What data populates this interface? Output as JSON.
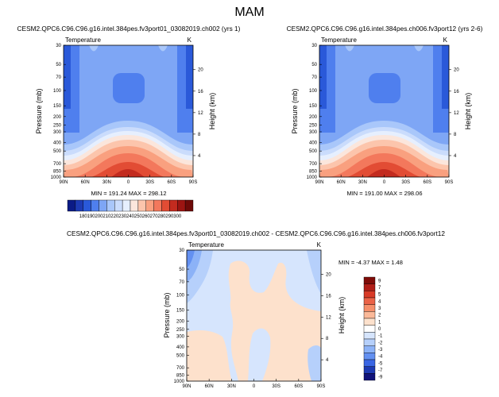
{
  "figure": {
    "title": "MAM"
  },
  "palettes": {
    "abs": [
      "#0b1b86",
      "#1d3ab3",
      "#2a59d9",
      "#4f7fee",
      "#7ea6f5",
      "#a9c7fa",
      "#cadcfc",
      "#e6effe",
      "#fbe6dc",
      "#fcc5ac",
      "#f9a07f",
      "#f3785c",
      "#e24c34",
      "#c32b1f",
      "#9c1512",
      "#6e0a08"
    ],
    "diff": [
      "#10127a",
      "#1d3ab3",
      "#3a66e4",
      "#6390f1",
      "#8cb2f7",
      "#b6d0fb",
      "#d6e5fd",
      "#ffffff",
      "#fde1cc",
      "#fbb999",
      "#f58e6a",
      "#ea6247",
      "#d83a27",
      "#b01d17",
      "#7f0c09"
    ]
  },
  "chart_data": [
    {
      "type": "contour",
      "title": "CESM2.QPC6.C96.C96.g16.intel.384pes.fv3port01_03082019.ch002 (yrs 1)",
      "left_label": "Temperature",
      "right_label": "K",
      "xlabel": "",
      "ylabel": "Pressure (mb)",
      "ylabel_right": "Height (km)",
      "x_ticks": [
        "90N",
        "60N",
        "30N",
        "0",
        "30S",
        "60S",
        "90S"
      ],
      "y_ticks": [
        "30",
        "50",
        "70",
        "100",
        "150",
        "200",
        "250",
        "300",
        "400",
        "500",
        "700",
        "850",
        "1000"
      ],
      "y_ticks_right": [
        "20",
        "16",
        "12",
        "8",
        "4"
      ],
      "min": 191.24,
      "max": 298.12,
      "stats": "MIN = 191.24   MAX = 298.12"
    },
    {
      "type": "contour",
      "title": "CESM2.QPC6.C96.C96.g16.intel.384pes.ch006.fv3port12 (yrs 2-6)",
      "left_label": "Temperature",
      "right_label": "K",
      "xlabel": "",
      "ylabel": "Pressure (mb)",
      "ylabel_right": "Height (km)",
      "x_ticks": [
        "90N",
        "60N",
        "30N",
        "0",
        "30S",
        "60S",
        "90S"
      ],
      "y_ticks": [
        "30",
        "50",
        "70",
        "100",
        "150",
        "200",
        "250",
        "300",
        "400",
        "500",
        "700",
        "850",
        "1000"
      ],
      "y_ticks_right": [
        "20",
        "16",
        "12",
        "8",
        "4"
      ],
      "min": 191.0,
      "max": 298.06,
      "stats": "MIN = 191.00   MAX = 298.06"
    },
    {
      "type": "colorbar",
      "labels": [
        "180",
        "190",
        "200",
        "210",
        "220",
        "230",
        "240",
        "250",
        "260",
        "270",
        "280",
        "290",
        "300"
      ]
    },
    {
      "type": "contour",
      "title": "CESM2.QPC6.C96.C96.g16.intel.384pes.fv3port01_03082019.ch002 - CESM2.QPC6.C96.C96.g16.intel.384pes.ch006.fv3port12",
      "left_label": "Temperature",
      "right_label": "K",
      "xlabel": "",
      "ylabel": "Pressure (mb)",
      "ylabel_right": "Height (km)",
      "x_ticks": [
        "90N",
        "60N",
        "30N",
        "0",
        "30S",
        "60S",
        "90S"
      ],
      "y_ticks": [
        "30",
        "50",
        "70",
        "100",
        "150",
        "200",
        "250",
        "300",
        "400",
        "500",
        "700",
        "850",
        "1000"
      ],
      "y_ticks_right": [
        "20",
        "16",
        "12",
        "8",
        "4"
      ],
      "min": -4.37,
      "max": 1.48,
      "stats": "MIN =  -4.37   MAX =   1.48"
    },
    {
      "type": "colorbar",
      "labels": [
        "9",
        "7",
        "5",
        "4",
        "3",
        "2",
        "1",
        "0",
        "-1",
        "-2",
        "-3",
        "-4",
        "-5",
        "-7",
        "-9"
      ]
    }
  ]
}
